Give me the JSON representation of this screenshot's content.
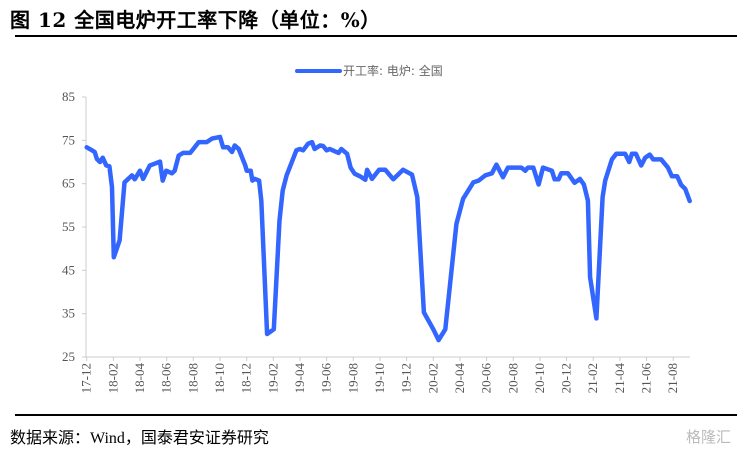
{
  "header": {
    "title": "图 12 全国电炉开工率下降（单位：%）"
  },
  "footer": {
    "source": "数据来源：Wind，国泰君安证券研究",
    "watermark": "格隆汇"
  },
  "chart_data": {
    "type": "line",
    "title": "",
    "xlabel": "",
    "ylabel": "",
    "ylim": [
      25,
      85
    ],
    "yticks": [
      "85",
      "75",
      "65",
      "55",
      "45",
      "35",
      "25"
    ],
    "xticks": [
      "17-12",
      "18-02",
      "18-04",
      "18-06",
      "18-08",
      "18-10",
      "18-12",
      "19-02",
      "19-04",
      "19-06",
      "19-08",
      "19-10",
      "19-12",
      "20-02",
      "20-04",
      "20-06",
      "20-08",
      "20-10",
      "20-12",
      "21-02",
      "21-04",
      "21-06",
      "21-08"
    ],
    "grid": false,
    "legend_position": "top-center",
    "series": [
      {
        "name": "开工率: 电炉: 全国",
        "color": "#3366ff",
        "x": [
          "2017-12-01",
          "2017-12-13",
          "2017-12-19",
          "2017-12-24",
          "2018-01-01",
          "2018-01-07",
          "2018-01-15",
          "2018-01-22",
          "2018-01-28",
          "2018-02-02",
          "2018-02-15",
          "2018-02-26",
          "2018-03-13",
          "2018-03-19",
          "2018-04-01",
          "2018-04-08",
          "2018-04-23",
          "2018-05-04",
          "2018-05-16",
          "2018-05-22",
          "2018-05-30",
          "2018-06-13",
          "2018-06-19",
          "2018-06-28",
          "2018-07-08",
          "2018-07-24",
          "2018-08-01",
          "2018-08-13",
          "2018-09-01",
          "2018-09-13",
          "2018-10-01",
          "2018-10-08",
          "2018-10-19",
          "2018-10-28",
          "2018-11-04",
          "2018-11-13",
          "2018-11-28",
          "2018-12-01",
          "2018-12-10",
          "2018-12-14",
          "2018-12-19",
          "2018-12-29",
          "2019-01-04",
          "2019-01-17",
          "2019-02-02",
          "2019-02-15",
          "2019-02-22",
          "2019-03-01",
          "2019-03-23",
          "2019-04-01",
          "2019-04-08",
          "2019-04-19",
          "2019-04-28",
          "2019-05-04",
          "2019-05-16",
          "2019-05-23",
          "2019-06-01",
          "2019-06-08",
          "2019-06-19",
          "2019-06-28",
          "2019-07-04",
          "2019-07-17",
          "2019-07-25",
          "2019-08-04",
          "2019-08-16",
          "2019-08-28",
          "2019-09-02",
          "2019-09-13",
          "2019-09-29",
          "2019-10-13",
          "2019-11-01",
          "2019-11-23",
          "2019-12-13",
          "2019-12-25",
          "2020-01-10",
          "2020-02-01",
          "2020-02-13",
          "2020-02-28",
          "2020-03-23",
          "2020-04-08",
          "2020-05-01",
          "2020-05-13",
          "2020-05-28",
          "2020-06-13",
          "2020-06-23",
          "2020-07-08",
          "2020-07-19",
          "2020-08-19",
          "2020-08-28",
          "2020-09-04",
          "2020-09-16",
          "2020-09-28",
          "2020-10-08",
          "2020-10-28",
          "2020-11-04",
          "2020-11-13",
          "2020-11-19",
          "2020-12-04",
          "2020-12-19",
          "2021-01-01",
          "2021-01-10",
          "2021-01-19",
          "2021-01-24",
          "2021-02-08",
          "2021-02-22",
          "2021-02-28",
          "2021-03-13",
          "2021-03-23",
          "2021-04-13",
          "2021-04-22",
          "2021-04-28",
          "2021-05-07",
          "2021-05-19",
          "2021-05-28",
          "2021-06-08",
          "2021-06-16",
          "2021-07-04",
          "2021-07-19",
          "2021-07-28",
          "2021-08-10",
          "2021-08-19",
          "2021-08-28",
          "2021-09-08"
        ],
        "values": [
          73.4,
          72.7,
          72.3,
          70.7,
          70.0,
          71.0,
          69.2,
          69.0,
          64.2,
          48.0,
          51.9,
          65.3,
          66.9,
          66.0,
          68.0,
          66.1,
          69.2,
          69.6,
          70.1,
          65.7,
          68.0,
          67.4,
          68.0,
          71.5,
          72.1,
          72.1,
          73.0,
          74.6,
          74.6,
          75.4,
          75.8,
          73.4,
          73.4,
          72.3,
          73.8,
          73.0,
          69.2,
          68.0,
          68.0,
          65.7,
          66.1,
          65.7,
          61.1,
          30.3,
          31.4,
          56.5,
          63.4,
          66.9,
          72.7,
          73.0,
          72.7,
          74.2,
          74.6,
          73.0,
          73.8,
          73.7,
          72.7,
          73.0,
          72.5,
          72.1,
          73.0,
          71.9,
          68.7,
          67.3,
          66.7,
          65.9,
          68.2,
          66.1,
          68.2,
          68.2,
          66.0,
          68.2,
          67.1,
          61.9,
          35.3,
          31.4,
          28.9,
          31.4,
          55.7,
          61.5,
          65.3,
          65.7,
          66.9,
          67.4,
          69.4,
          66.5,
          68.7,
          68.7,
          68.0,
          68.7,
          68.7,
          64.8,
          68.7,
          68.0,
          66.0,
          66.0,
          67.4,
          67.4,
          65.2,
          66.1,
          64.8,
          61.1,
          43.4,
          33.9,
          61.9,
          65.7,
          70.6,
          71.9,
          71.9,
          70.0,
          71.9,
          71.9,
          69.2,
          71.0,
          71.7,
          70.6,
          70.6,
          68.7,
          66.7,
          66.7,
          64.7,
          63.8,
          61.0
        ]
      }
    ]
  }
}
